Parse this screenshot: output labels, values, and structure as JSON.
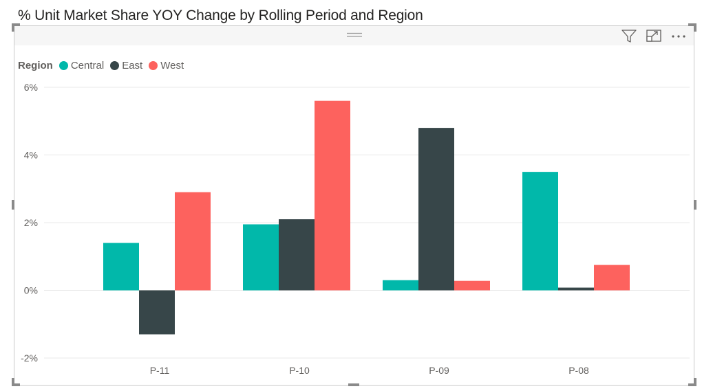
{
  "title": "% Unit Market Share YOY Change by Rolling Period and Region",
  "header": {
    "icons": [
      "filter-icon",
      "focus-mode-icon",
      "more-options-icon"
    ]
  },
  "chart_data": {
    "type": "bar",
    "title": "% Unit Market Share YOY Change by Rolling Period and Region",
    "xlabel": "",
    "ylabel": "",
    "categories": [
      "P-11",
      "P-10",
      "P-09",
      "P-08"
    ],
    "legend_title": "Region",
    "legend_position": "top-left",
    "series": [
      {
        "name": "Central",
        "color": "#01B8AA",
        "values": [
          1.4,
          1.95,
          0.3,
          3.5
        ]
      },
      {
        "name": "East",
        "color": "#374649",
        "values": [
          -1.3,
          2.1,
          4.8,
          0.08
        ]
      },
      {
        "name": "West",
        "color": "#FD625E",
        "values": [
          2.9,
          5.6,
          0.28,
          0.75
        ]
      }
    ],
    "y_ticks": [
      -2,
      0,
      2,
      4,
      6
    ],
    "y_tick_labels": [
      "-2%",
      "0%",
      "2%",
      "4%",
      "6%"
    ],
    "ylim": [
      -2,
      6
    ],
    "grid": true
  }
}
